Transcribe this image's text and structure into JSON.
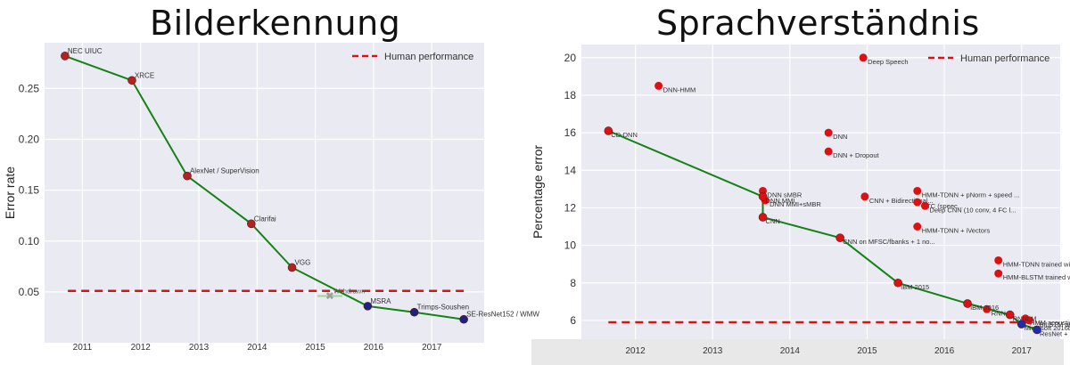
{
  "chart_data": [
    {
      "type": "line",
      "title": "Bilderkennung",
      "xlabel": "",
      "ylabel": "Error rate",
      "xlim": [
        2010.35,
        2017.9
      ],
      "ylim": [
        0.0,
        0.295
      ],
      "x_ticks": [
        2011,
        2012,
        2013,
        2014,
        2015,
        2016,
        2017
      ],
      "y_ticks": [
        0.05,
        0.1,
        0.15,
        0.2,
        0.25
      ],
      "y_tick_labels": [
        "0.05",
        "0.10",
        "0.15",
        "0.20",
        "0.25"
      ],
      "legend": {
        "label": "Human performance",
        "location": "top-right"
      },
      "human_performance": 0.051,
      "points": [
        {
          "label": "NEC UIUC",
          "x": 2010.7,
          "y": 0.282,
          "color": "#b22222"
        },
        {
          "label": "XRCE",
          "x": 2011.85,
          "y": 0.258,
          "color": "#b22222"
        },
        {
          "label": "AlexNet / SuperVision",
          "x": 2012.8,
          "y": 0.164,
          "color": "#b22222"
        },
        {
          "label": "Clarifai",
          "x": 2013.9,
          "y": 0.117,
          "color": "#b22222"
        },
        {
          "label": "VGG",
          "x": 2014.6,
          "y": 0.074,
          "color": "#b22222"
        },
        {
          "label": "MSRA",
          "x": 2015.9,
          "y": 0.036,
          "color": "#1a237e"
        },
        {
          "label": "Trimps-Soushen",
          "x": 2016.7,
          "y": 0.03,
          "color": "#1a237e"
        },
        {
          "label": "SE-ResNet152 / WMW",
          "x": 2017.55,
          "y": 0.023,
          "color": "#1a237e"
        }
      ],
      "extra_points": [
        {
          "label": "Withdrawn",
          "x": 2015.25,
          "y": 0.046,
          "color": "#9e9e9e"
        }
      ]
    },
    {
      "type": "line",
      "title": "Sprachverständnis",
      "xlabel": "",
      "ylabel": "Percentage error",
      "xlim": [
        2011.3,
        2017.5
      ],
      "ylim": [
        5.0,
        20.7
      ],
      "x_ticks": [
        2012,
        2013,
        2014,
        2015,
        2016,
        2017
      ],
      "y_ticks": [
        6,
        8,
        10,
        12,
        14,
        16,
        18,
        20
      ],
      "legend": {
        "label": "Human performance",
        "location": "top-right"
      },
      "human_performance": 5.9,
      "frontier": [
        {
          "label": "CD-DNN",
          "x": 2011.65,
          "y": 16.1,
          "color": "#dd1111"
        },
        {
          "label": "DNN MMI",
          "x": 2013.65,
          "y": 12.6,
          "color": "#dd1111"
        },
        {
          "label": "CNN",
          "x": 2013.65,
          "y": 11.5,
          "color": "#dd1111"
        },
        {
          "label": "CNN on MFSC/fbanks + 1 no...",
          "x": 2014.65,
          "y": 10.4,
          "color": "#dd1111"
        },
        {
          "label": "IBM 2015",
          "x": 2015.4,
          "y": 8.0,
          "color": "#dd1111"
        },
        {
          "label": "IBM 2016",
          "x": 2016.3,
          "y": 6.9,
          "color": "#dd1111"
        },
        {
          "label": "RNNLM",
          "x": 2016.85,
          "y": 6.3,
          "color": "#dd1111"
        },
        {
          "label": "Microsoft 2016b",
          "x": 2017.0,
          "y": 5.8,
          "color": "#1a2fb0"
        },
        {
          "label": "ResNet + BiLSTMs acoustic...",
          "x": 2017.2,
          "y": 5.5,
          "color": "#1a2fb0"
        }
      ],
      "other_points": [
        {
          "label": "DNN-HMM",
          "x": 2012.3,
          "y": 18.5,
          "color": "#dd1111"
        },
        {
          "label": "Deep Speech",
          "x": 2014.95,
          "y": 20.0,
          "color": "#dd1111"
        },
        {
          "label": "DNN",
          "x": 2014.5,
          "y": 16.0,
          "color": "#dd1111"
        },
        {
          "label": "DNN + Dropout",
          "x": 2014.5,
          "y": 15.0,
          "color": "#dd1111"
        },
        {
          "label": "DNN sMBR",
          "x": 2013.65,
          "y": 12.9,
          "color": "#dd1111"
        },
        {
          "label": "DNN MMI+sMBR",
          "x": 2013.68,
          "y": 12.4,
          "color": "#dd1111"
        },
        {
          "label": "CNN + Bidirectional...",
          "x": 2014.97,
          "y": 12.6,
          "color": "#dd1111"
        },
        {
          "label": "HMM-TDNN + pNorm + speed ...",
          "x": 2015.65,
          "y": 12.9,
          "color": "#dd1111"
        },
        {
          "label": "CTC (speec...",
          "x": 2015.65,
          "y": 12.3,
          "color": "#dd1111"
        },
        {
          "label": "Deep CNN (10 conv, 4 FC l...",
          "x": 2015.75,
          "y": 12.1,
          "color": "#dd1111"
        },
        {
          "label": "HMM-TDNN + iVectors",
          "x": 2015.65,
          "y": 11.0,
          "color": "#dd1111"
        },
        {
          "label": "HMM-TDNN trained with MMI...",
          "x": 2016.7,
          "y": 9.2,
          "color": "#dd1111"
        },
        {
          "label": "HMM-BLSTM trained with MMI...",
          "x": 2016.7,
          "y": 8.5,
          "color": "#dd1111"
        },
        {
          "label": "RNN...",
          "x": 2016.55,
          "y": 6.6,
          "color": "#dd1111"
        },
        {
          "label": "HMM acoustic...",
          "x": 2017.05,
          "y": 6.1,
          "color": "#dd1111"
        },
        {
          "label": "...BiLSTM ac...",
          "x": 2017.1,
          "y": 6.0,
          "color": "#dd1111"
        }
      ]
    }
  ]
}
